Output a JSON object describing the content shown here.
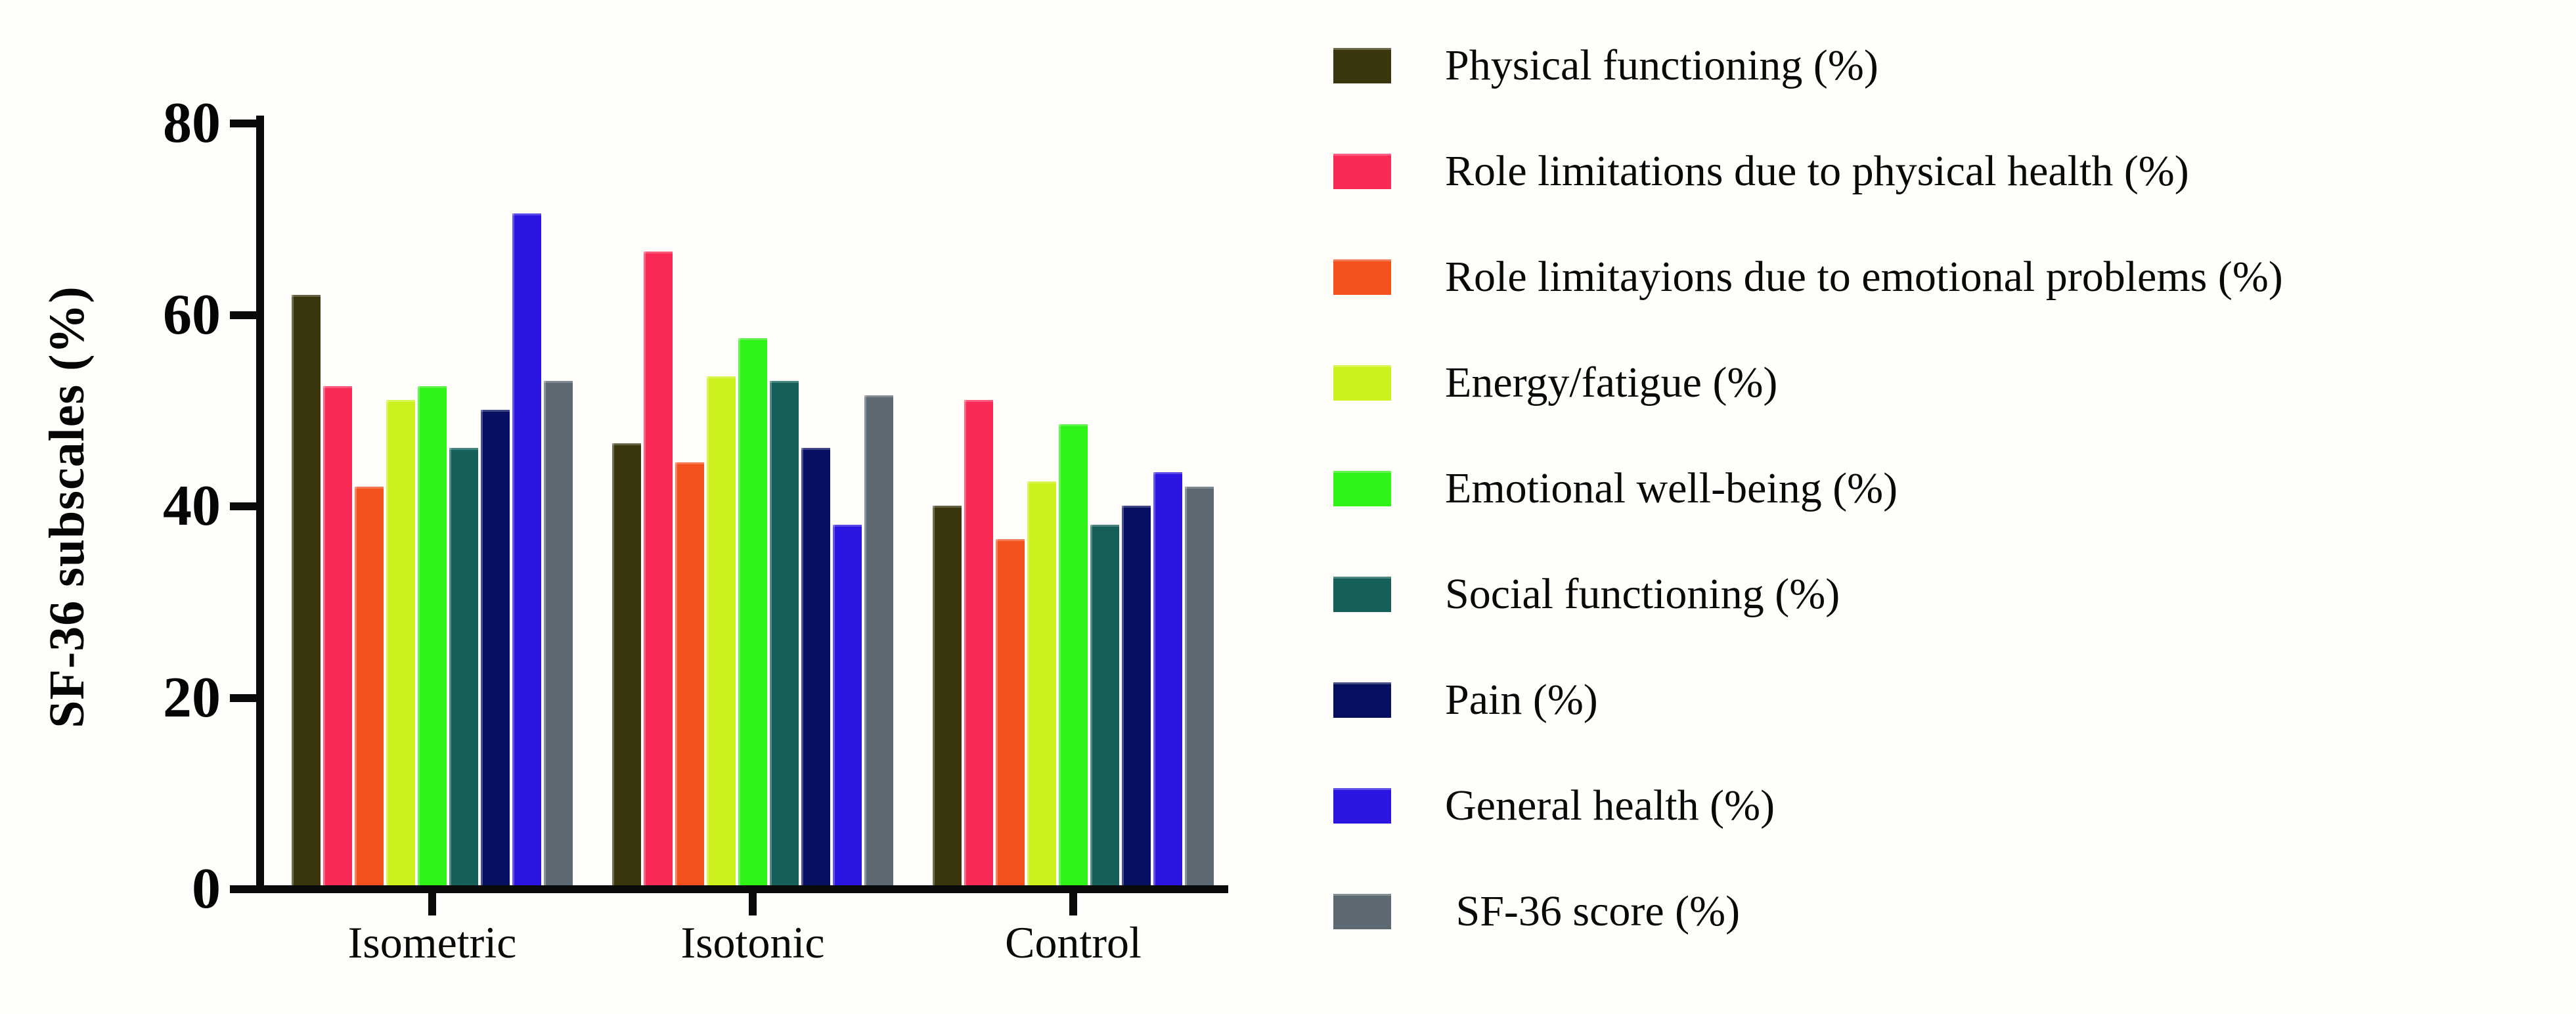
{
  "figure": {
    "background": "#fffefa",
    "axis_color": "#0a0a0a",
    "y_axis_title": "SF-36 subscales (%)",
    "y_ticks": [
      0,
      20,
      40,
      60,
      80
    ],
    "x_labels": [
      "Isometric",
      "Isotonic",
      "Control"
    ]
  },
  "legend": {
    "position": "right",
    "items": [
      {
        "label": "Physical functioning (%)",
        "color": "#3a370f"
      },
      {
        "label": "Role limitations due to physical health (%)",
        "color": "#fa2a57"
      },
      {
        "label": "Role limitayions due to emotional problems (%)",
        "color": "#f5511e"
      },
      {
        "label": "Energy/fatigue (%)",
        "color": "#ccf21d"
      },
      {
        "label": "Emotional well-being (%)",
        "color": "#30f318"
      },
      {
        "label": "Social functioning (%)",
        "color": "#16605a"
      },
      {
        "label": "Pain (%)",
        "color": "#071060"
      },
      {
        "label": "General health (%)",
        "color": "#2a16e0"
      },
      {
        "label": " SF-36 score (%)",
        "color": "#5d6a73"
      }
    ]
  },
  "chart_data": {
    "type": "bar",
    "title": "",
    "xlabel": "",
    "ylabel": "SF-36 subscales (%)",
    "ylim": [
      0,
      80
    ],
    "y_tick_step": 20,
    "grid": false,
    "legend_position": "right",
    "categories": [
      "Isometric",
      "Isotonic",
      "Control"
    ],
    "series": [
      {
        "name": "Physical functioning (%)",
        "color": "#3a370f",
        "values": [
          62.5,
          47,
          40.5
        ]
      },
      {
        "name": "Role limitations due to physical health (%)",
        "color": "#fa2a57",
        "values": [
          53,
          67,
          51.5
        ]
      },
      {
        "name": "Role limitayions due to emotional problems (%)",
        "color": "#f5511e",
        "values": [
          42.5,
          45,
          37
        ]
      },
      {
        "name": "Energy/fatigue (%)",
        "color": "#ccf21d",
        "values": [
          51.5,
          54,
          43
        ]
      },
      {
        "name": "Emotional well-being (%)",
        "color": "#30f318",
        "values": [
          53,
          58,
          49
        ]
      },
      {
        "name": "Social functioning (%)",
        "color": "#16605a",
        "values": [
          46.5,
          53.5,
          38.5
        ]
      },
      {
        "name": "Pain (%)",
        "color": "#071060",
        "values": [
          50.5,
          46.5,
          40.5
        ]
      },
      {
        "name": "General health (%)",
        "color": "#2a16e0",
        "values": [
          71,
          38.5,
          44
        ]
      },
      {
        "name": "SF-36 score (%)",
        "color": "#5d6a73",
        "values": [
          53.5,
          52,
          42.5
        ]
      }
    ]
  }
}
